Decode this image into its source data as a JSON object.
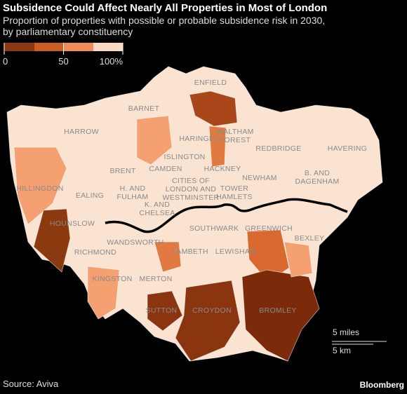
{
  "header": {
    "title": "Subsidence Could Affect Nearly All Properties in Most of London",
    "subtitle": [
      "Proportion of properties with possible or probable subsidence risk in 2030,",
      "by parliamentary constituency"
    ]
  },
  "legend": {
    "range": [
      0,
      100
    ],
    "ticks": [
      {
        "value": 0,
        "label": "0"
      },
      {
        "value": 50,
        "label": "50"
      },
      {
        "value": 100,
        "label": "100%"
      }
    ]
  },
  "labels": [
    [
      "ENFIELD"
    ],
    [
      "BARNET"
    ],
    [
      "HARROW"
    ],
    [
      "HARINGEY"
    ],
    [
      "WALTHAM",
      "FOREST"
    ],
    [
      "REDBRIDGE"
    ],
    [
      "HAVERING"
    ],
    [
      "ISLINGTON"
    ],
    [
      "HACKNEY"
    ],
    [
      "CAMDEN"
    ],
    [
      "BRENT"
    ],
    [
      "NEWHAM"
    ],
    [
      "B. AND",
      "DAGENHAM"
    ],
    [
      "HILLINGDON"
    ],
    [
      "EALING"
    ],
    [
      "H. AND",
      "FULHAM"
    ],
    [
      "CITIES OF",
      "LONDON AND",
      "WESTMINSTER"
    ],
    [
      "TOWER",
      "HAMLETS"
    ],
    [
      "K. AND",
      "CHELSEA"
    ],
    [
      "HOUNSLOW"
    ],
    [
      "SOUTHWARK"
    ],
    [
      "GREENWICH"
    ],
    [
      "BEXLEY"
    ],
    [
      "WANDSWORTH"
    ],
    [
      "LAMBETH"
    ],
    [
      "LEWISHAM"
    ],
    [
      "RICHMOND"
    ],
    [
      "KINGSTON"
    ],
    [
      "MERTON"
    ],
    [
      "SUTTON"
    ],
    [
      "CROYDON"
    ],
    [
      "BROMLEY"
    ]
  ],
  "scale": {
    "miles": "5 miles",
    "km": "5 km"
  },
  "footer": {
    "source": "Source: Aviva",
    "brand": "Bloomberg"
  }
}
